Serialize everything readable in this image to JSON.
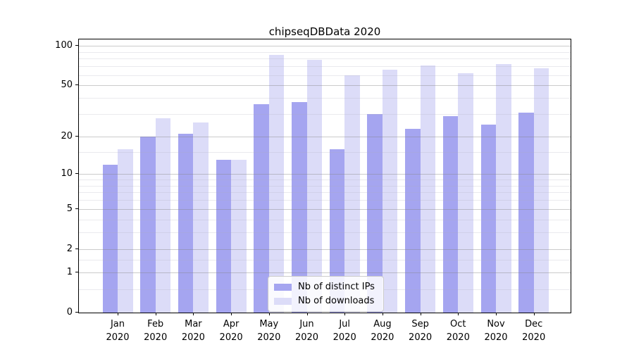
{
  "title": "chipseqDBData 2020",
  "chart_data": {
    "type": "bar",
    "title": "chipseqDBData 2020",
    "categories": [
      "Jan",
      "Feb",
      "Mar",
      "Apr",
      "May",
      "Jun",
      "Jul",
      "Aug",
      "Sep",
      "Oct",
      "Nov",
      "Dec"
    ],
    "year": "2020",
    "series": [
      {
        "name": "Nb of distinct IPs",
        "color": "#a5a5f0",
        "values": [
          12,
          20,
          21,
          13,
          36,
          37,
          16,
          30,
          23,
          29,
          25,
          31
        ]
      },
      {
        "name": "Nb of downloads",
        "color": "#dcdcf8",
        "values": [
          16,
          28,
          26,
          13,
          85,
          78,
          60,
          66,
          71,
          62,
          73,
          68
        ]
      }
    ],
    "xlabel": "",
    "ylabel": "",
    "yscale": "log10(1+x)",
    "ylim": [
      0,
      112
    ],
    "yticks": [
      0,
      1,
      2,
      5,
      10,
      20,
      50,
      100
    ],
    "ytick_labels": [
      "0",
      "1",
      "2",
      "5",
      "10",
      "20",
      "50",
      "100"
    ],
    "minor_gridlines": [
      0.5,
      1.5,
      3,
      4,
      6,
      7,
      8,
      9,
      15,
      30,
      40,
      60,
      70,
      80,
      90
    ],
    "grid": true,
    "legend_position": "lower center",
    "axis_color": "#000000",
    "background_color": "#ffffff"
  }
}
